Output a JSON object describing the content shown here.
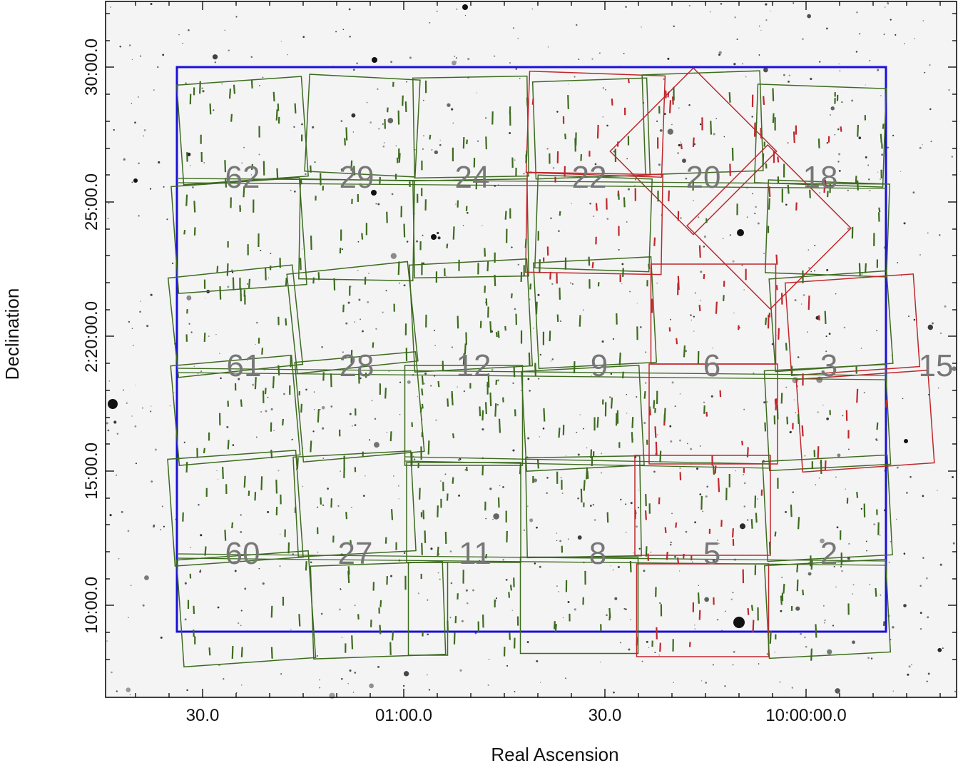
{
  "figure": {
    "xlabel": "Real Ascension",
    "ylabel": "Declination",
    "x_ticks": [
      "30.0",
      "01:00.0",
      "30.0",
      "10:00:00.0"
    ],
    "y_ticks": [
      "30:00.0",
      "25:00.0",
      "2:20:00.0",
      "15:00.0",
      "10:00.0"
    ],
    "colors": {
      "survey_boundary": "#1a10d8",
      "green_fields": "#3d6b1f",
      "red_fields": "#c0272d",
      "labels": "#777777"
    }
  },
  "fields": {
    "green": [
      "62",
      "29",
      "24",
      "61",
      "28",
      "12",
      "9",
      "60",
      "27",
      "11",
      "8",
      "18",
      "2"
    ],
    "red": [
      "22",
      "20",
      "6",
      "3",
      "15",
      "5"
    ]
  }
}
